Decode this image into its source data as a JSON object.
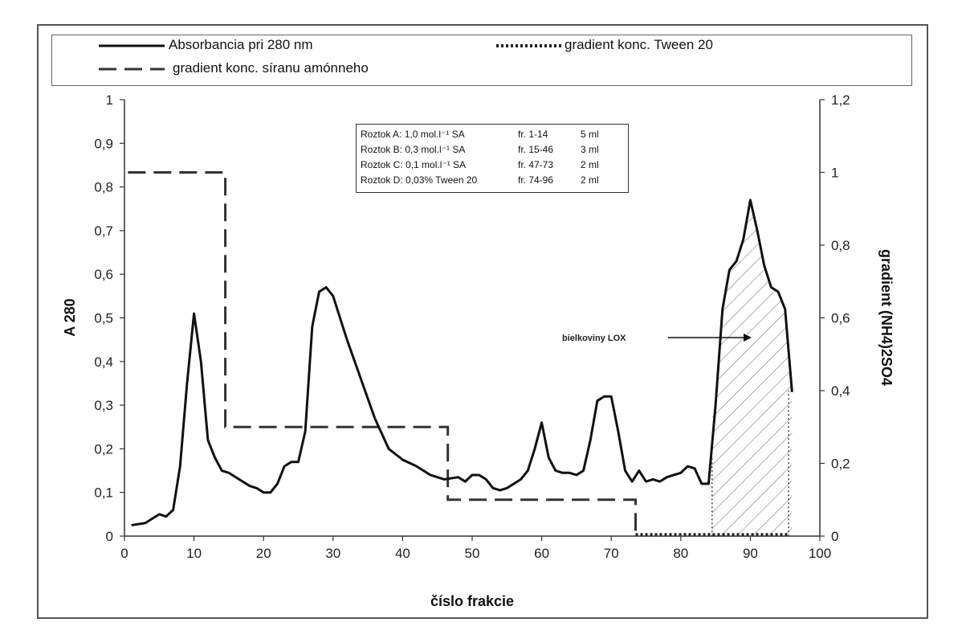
{
  "chart_data": {
    "type": "line",
    "xlabel": "číslo frakcie",
    "ylabel": "A 280",
    "y2label": "gradient (NH4)2SO4",
    "xlim": [
      0,
      100
    ],
    "ylim": [
      0,
      1
    ],
    "y2lim": [
      0,
      1.2
    ],
    "x_ticks": [
      "0",
      "10",
      "20",
      "30",
      "40",
      "50",
      "60",
      "70",
      "80",
      "90",
      "100"
    ],
    "y_ticks": [
      "0",
      "0,1",
      "0,2",
      "0,3",
      "0,4",
      "0,5",
      "0,6",
      "0,7",
      "0,8",
      "0,9",
      "1"
    ],
    "y2_ticks": [
      "0",
      "0,2",
      "0,4",
      "0,6",
      "0,8",
      "1",
      "1,2"
    ],
    "legend": {
      "absorbance": "Absorbancia pri 280 nm",
      "tween": "gradient konc. Tween 20",
      "sulfate": "gradient konc. síranu amónneho"
    },
    "annotation": "bielkoviny LOX",
    "info_box": [
      {
        "solution": "Roztok A: 1,0 mol.l⁻¹ SA",
        "fractions": "fr. 1-14",
        "volume": "5 ml"
      },
      {
        "solution": "Roztok B: 0,3 mol.l⁻¹ SA",
        "fractions": "fr. 15-46",
        "volume": "3 ml"
      },
      {
        "solution": "Roztok C: 0,1 mol.l⁻¹ SA",
        "fractions": "fr. 47-73",
        "volume": "2 ml"
      },
      {
        "solution": "Roztok D: 0,03% Tween 20",
        "fractions": "fr. 74-96",
        "volume": "2 ml"
      }
    ],
    "series": [
      {
        "name": "Absorbancia pri 280 nm",
        "axis": "left",
        "x": [
          1,
          3,
          4,
          5,
          6,
          7,
          8,
          9,
          10,
          11,
          12,
          13,
          14,
          15,
          16,
          17,
          18,
          19,
          20,
          21,
          22,
          23,
          24,
          25,
          26,
          27,
          28,
          29,
          30,
          32,
          34,
          36,
          38,
          40,
          42,
          44,
          46,
          48,
          49,
          50,
          51,
          52,
          53,
          54,
          55,
          56,
          57,
          58,
          59,
          60,
          61,
          62,
          63,
          64,
          65,
          66,
          67,
          68,
          69,
          70,
          71,
          72,
          73,
          74,
          75,
          76,
          77,
          78,
          79,
          80,
          81,
          82,
          83,
          84,
          85,
          86,
          87,
          88,
          89,
          90,
          91,
          92,
          93,
          94,
          95,
          96
        ],
        "y": [
          0.025,
          0.03,
          0.04,
          0.05,
          0.045,
          0.06,
          0.16,
          0.35,
          0.51,
          0.4,
          0.22,
          0.18,
          0.15,
          0.145,
          0.135,
          0.125,
          0.115,
          0.11,
          0.1,
          0.1,
          0.12,
          0.16,
          0.17,
          0.17,
          0.24,
          0.48,
          0.56,
          0.57,
          0.55,
          0.45,
          0.36,
          0.27,
          0.2,
          0.175,
          0.16,
          0.14,
          0.13,
          0.135,
          0.125,
          0.14,
          0.14,
          0.13,
          0.11,
          0.105,
          0.11,
          0.12,
          0.13,
          0.15,
          0.2,
          0.26,
          0.18,
          0.15,
          0.145,
          0.145,
          0.14,
          0.15,
          0.22,
          0.31,
          0.32,
          0.32,
          0.24,
          0.15,
          0.125,
          0.15,
          0.125,
          0.13,
          0.125,
          0.135,
          0.14,
          0.145,
          0.16,
          0.155,
          0.12,
          0.12,
          0.3,
          0.52,
          0.61,
          0.63,
          0.68,
          0.77,
          0.7,
          0.62,
          0.57,
          0.56,
          0.52,
          0.33
        ]
      },
      {
        "name": "gradient konc. síranu amónneho",
        "axis": "right",
        "x": [
          0.5,
          14.5,
          14.5,
          46.5,
          46.5,
          73.5,
          73.5
        ],
        "y": [
          1.0,
          1.0,
          0.3,
          0.3,
          0.1,
          0.1,
          0.0
        ]
      },
      {
        "name": "gradient konc. Tween 20",
        "axis": "right",
        "x": [
          73.5,
          84.5,
          84.5,
          84.5,
          95.5,
          95.5
        ],
        "y": [
          0.0,
          0.0,
          0.22,
          0.0,
          0.0,
          0.4
        ]
      }
    ],
    "shaded_region": {
      "x_from": 84.5,
      "x_to": 96,
      "label": "bielkoviny LOX"
    }
  }
}
